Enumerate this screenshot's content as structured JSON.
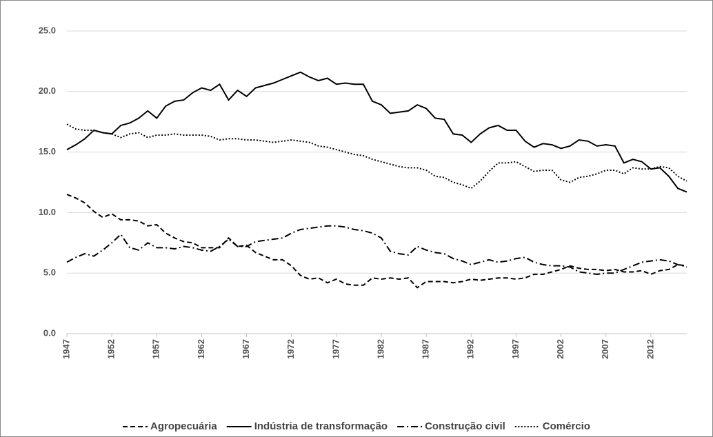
{
  "chart_data": {
    "type": "line",
    "x": [
      1947,
      1948,
      1949,
      1950,
      1951,
      1952,
      1953,
      1954,
      1955,
      1956,
      1957,
      1958,
      1959,
      1960,
      1961,
      1962,
      1963,
      1964,
      1965,
      1966,
      1967,
      1968,
      1969,
      1970,
      1971,
      1972,
      1973,
      1974,
      1975,
      1976,
      1977,
      1978,
      1979,
      1980,
      1981,
      1982,
      1983,
      1984,
      1985,
      1986,
      1987,
      1988,
      1989,
      1990,
      1991,
      1992,
      1993,
      1994,
      1995,
      1996,
      1997,
      1998,
      1999,
      2000,
      2001,
      2002,
      2003,
      2004,
      2005,
      2006,
      2007,
      2008,
      2009,
      2010,
      2011,
      2012,
      2013,
      2014,
      2015,
      2016
    ],
    "xlim": [
      1947,
      2016
    ],
    "xticks": [
      1947,
      1952,
      1957,
      1962,
      1967,
      1972,
      1977,
      1982,
      1987,
      1992,
      1997,
      2002,
      2007,
      2012
    ],
    "ylim": [
      0,
      25
    ],
    "yticks": [
      {
        "value": 0,
        "label": "0.0"
      },
      {
        "value": 5,
        "label": "5.0"
      },
      {
        "value": 10,
        "label": "10.0"
      },
      {
        "value": 15,
        "label": "15.0"
      },
      {
        "value": 20,
        "label": "20.0"
      },
      {
        "value": 25,
        "label": "25.0"
      }
    ],
    "grid": true,
    "legend": "bottom",
    "series": [
      {
        "name": "Agropecuária",
        "color": "#000000",
        "style": "dashed",
        "values": [
          11.5,
          11.2,
          10.8,
          10.1,
          9.6,
          9.9,
          9.4,
          9.4,
          9.3,
          8.9,
          9.0,
          8.3,
          7.9,
          7.6,
          7.5,
          7.1,
          7.1,
          7.1,
          7.9,
          7.2,
          7.3,
          6.7,
          6.4,
          6.1,
          6.1,
          5.6,
          4.8,
          4.5,
          4.6,
          4.2,
          4.5,
          4.1,
          4.0,
          4.0,
          4.6,
          4.5,
          4.6,
          4.5,
          4.6,
          3.8,
          4.3,
          4.3,
          4.3,
          4.2,
          4.3,
          4.5,
          4.4,
          4.5,
          4.6,
          4.6,
          4.5,
          4.6,
          4.9,
          4.9,
          5.1,
          5.3,
          5.6,
          5.4,
          5.3,
          5.3,
          5.2,
          5.3,
          5.1,
          5.1,
          5.2,
          4.9,
          5.2,
          5.3,
          5.7,
          5.6
        ]
      },
      {
        "name": "Indústria de transformação",
        "color": "#000000",
        "style": "solid",
        "values": [
          15.2,
          15.6,
          16.1,
          16.8,
          16.6,
          16.5,
          17.2,
          17.4,
          17.8,
          18.4,
          17.8,
          18.8,
          19.2,
          19.3,
          19.9,
          20.3,
          20.1,
          20.6,
          19.3,
          20.1,
          19.6,
          20.3,
          20.5,
          20.7,
          21.0,
          21.3,
          21.6,
          21.2,
          20.9,
          21.1,
          20.6,
          20.7,
          20.6,
          20.6,
          19.2,
          18.9,
          18.2,
          18.3,
          18.4,
          18.9,
          18.6,
          17.8,
          17.7,
          16.5,
          16.4,
          15.8,
          16.5,
          17.0,
          17.2,
          16.8,
          16.8,
          15.9,
          15.4,
          15.7,
          15.6,
          15.3,
          15.5,
          16.0,
          15.9,
          15.5,
          15.6,
          15.5,
          14.1,
          14.4,
          14.2,
          13.6,
          13.7,
          13.0,
          12.0,
          11.7
        ]
      },
      {
        "name": "Construção civil",
        "color": "#000000",
        "style": "dashdot",
        "values": [
          5.9,
          6.3,
          6.6,
          6.4,
          6.9,
          7.5,
          8.2,
          7.1,
          6.9,
          7.5,
          7.1,
          7.1,
          7.0,
          7.2,
          7.1,
          6.9,
          6.8,
          7.2,
          7.8,
          7.2,
          7.2,
          7.6,
          7.7,
          7.8,
          7.9,
          8.3,
          8.6,
          8.7,
          8.8,
          8.9,
          8.9,
          8.8,
          8.6,
          8.5,
          8.3,
          7.9,
          6.8,
          6.6,
          6.5,
          7.2,
          6.9,
          6.7,
          6.6,
          6.2,
          6.0,
          5.7,
          5.9,
          6.1,
          5.9,
          6.0,
          6.2,
          6.3,
          5.9,
          5.7,
          5.6,
          5.6,
          5.5,
          5.1,
          5.0,
          4.9,
          5.0,
          5.0,
          5.3,
          5.6,
          5.9,
          6.0,
          6.1,
          6.0,
          5.7,
          5.5
        ]
      },
      {
        "name": "Comércio",
        "color": "#000000",
        "style": "dotted",
        "values": [
          17.3,
          16.9,
          16.8,
          16.8,
          16.6,
          16.5,
          16.2,
          16.5,
          16.6,
          16.2,
          16.4,
          16.4,
          16.5,
          16.4,
          16.4,
          16.4,
          16.3,
          16.0,
          16.1,
          16.1,
          16.0,
          16.0,
          15.9,
          15.8,
          15.9,
          16.0,
          15.9,
          15.8,
          15.5,
          15.4,
          15.2,
          15.0,
          14.8,
          14.7,
          14.4,
          14.2,
          14.0,
          13.8,
          13.7,
          13.7,
          13.5,
          13.0,
          12.9,
          12.5,
          12.3,
          12.0,
          12.6,
          13.4,
          14.1,
          14.1,
          14.2,
          13.8,
          13.4,
          13.5,
          13.5,
          12.7,
          12.5,
          12.9,
          13.0,
          13.2,
          13.5,
          13.5,
          13.2,
          13.7,
          13.6,
          13.6,
          13.8,
          13.7,
          13.0,
          12.6
        ]
      }
    ]
  }
}
